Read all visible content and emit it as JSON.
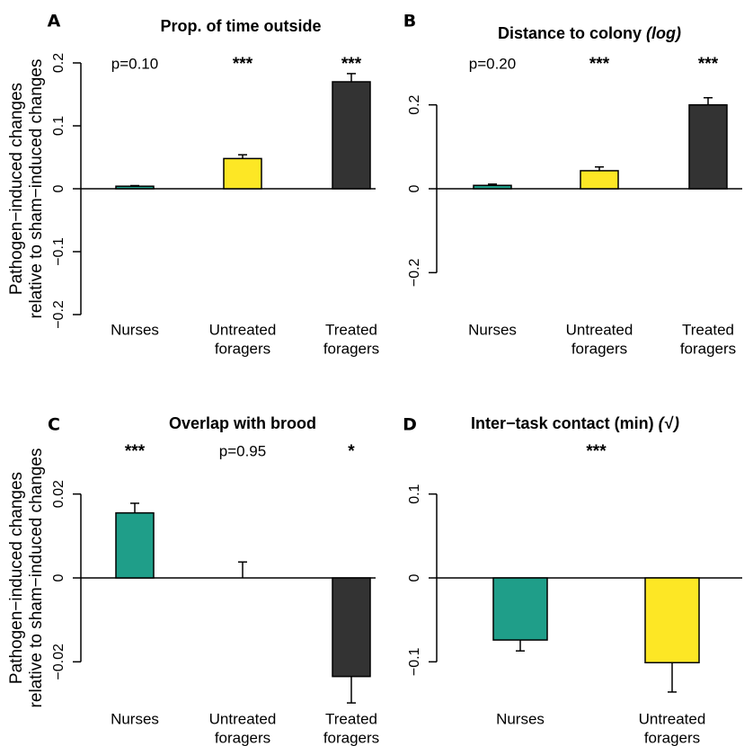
{
  "ylabel_lines": [
    "Pathogen−induced changes",
    "relative to sham−induced changes"
  ],
  "colors": {
    "Nurses": "#1f9e89",
    "Untreated foragers": "#fde725",
    "Treated foragers": "#333333"
  },
  "chart_data": [
    {
      "panel": "A",
      "type": "bar",
      "title": "Prop. of time outside",
      "title_suffix": "",
      "categories": [
        "Nurses",
        "Untreated foragers",
        "Treated foragers"
      ],
      "category_lines": [
        [
          "Nurses"
        ],
        [
          "Untreated",
          "foragers"
        ],
        [
          "Treated",
          "foragers"
        ]
      ],
      "values": [
        0.004,
        0.048,
        0.17
      ],
      "errors": [
        0.001,
        0.006,
        0.013
      ],
      "significance": [
        "p=0.10",
        "***",
        "***"
      ],
      "ylim": [
        -0.2,
        0.2
      ],
      "yticks": [
        -0.2,
        -0.1,
        0,
        0.1,
        0.2
      ],
      "ytick_labels": [
        "−0.2",
        "−0.1",
        "0",
        "0.1",
        "0.2"
      ],
      "grid": false
    },
    {
      "panel": "B",
      "type": "bar",
      "title": "Distance to colony",
      "title_suffix": "(log)",
      "categories": [
        "Nurses",
        "Untreated foragers",
        "Treated foragers"
      ],
      "category_lines": [
        [
          "Nurses"
        ],
        [
          "Untreated",
          "foragers"
        ],
        [
          "Treated",
          "foragers"
        ]
      ],
      "values": [
        0.008,
        0.043,
        0.2
      ],
      "errors": [
        0.003,
        0.009,
        0.017
      ],
      "significance": [
        "p=0.20",
        "***",
        "***"
      ],
      "ylim": [
        -0.3,
        0.3
      ],
      "yticks": [
        -0.2,
        0,
        0.2
      ],
      "ytick_labels": [
        "−0.2",
        "0",
        "0.2"
      ],
      "grid": false
    },
    {
      "panel": "C",
      "type": "bar",
      "title": "Overlap with brood",
      "title_suffix": "",
      "categories": [
        "Nurses",
        "Untreated foragers",
        "Treated foragers"
      ],
      "category_lines": [
        [
          "Nurses"
        ],
        [
          "Untreated",
          "foragers"
        ],
        [
          "Treated",
          "foragers"
        ]
      ],
      "values": [
        0.0155,
        0.0001,
        -0.0235
      ],
      "errors": [
        0.0023,
        0.0037,
        0.0063
      ],
      "significance": [
        "***",
        "p=0.95",
        "*"
      ],
      "ylim": [
        -0.03,
        0.03
      ],
      "yticks": [
        -0.02,
        0,
        0.02
      ],
      "ytick_labels": [
        "−0.02",
        "0",
        "0.02"
      ],
      "grid": false
    },
    {
      "panel": "D",
      "type": "bar",
      "title": "Inter−task contact (min)",
      "title_suffix": "(√ )",
      "categories": [
        "Nurses",
        "Untreated foragers"
      ],
      "category_lines": [
        [
          "Nurses"
        ],
        [
          "Untreated",
          "foragers"
        ]
      ],
      "values": [
        -0.074,
        -0.101
      ],
      "errors": [
        0.013,
        0.035
      ],
      "significance": [
        "",
        "***"
      ],
      "significance_center": true,
      "ylim": [
        -0.15,
        0.15
      ],
      "yticks": [
        -0.1,
        0,
        0.1
      ],
      "ytick_labels": [
        "−0.1",
        "0",
        "0.1"
      ],
      "grid": false
    }
  ]
}
